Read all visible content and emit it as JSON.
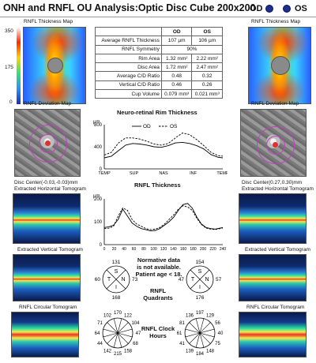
{
  "header": {
    "title": "ONH and RNFL OU Analysis:Optic Disc Cube 200x200",
    "od_label": "OD",
    "os_label": "OS"
  },
  "colors": {
    "eye_marker": "#1d2f8c",
    "od_series": "#000000",
    "os_series": "#000000"
  },
  "thickness_map": {
    "title": "RNFL Thickness Map",
    "scale_ticks": [
      "350",
      "175",
      "0"
    ]
  },
  "deviation_map": {
    "title": "RNFL Deviation Map",
    "od_center": "Disc Center(-0.03,-0.03)mm",
    "os_center": "Disc Center(0.27,0.30)mm"
  },
  "tomograms": {
    "horizontal": "Extracted Horizontal Tomogram",
    "vertical": "Extracted Vertical Tomogram",
    "circular": "RNFL Circular Tomogram"
  },
  "summary_table": {
    "headers": [
      "",
      "OD",
      "OS"
    ],
    "rows": [
      {
        "label": "Average RNFL Thickness",
        "od": "107 µm",
        "os": "106 µm"
      },
      {
        "label": "RNFL Symmetry",
        "both": "90%"
      },
      {
        "label": "Rim Area",
        "od": "1.32 mm²",
        "os": "2.22 mm²"
      },
      {
        "label": "Disc Area",
        "od": "1.72 mm²",
        "os": "2.47 mm²"
      },
      {
        "label": "Average C/D Ratio",
        "od": "0.48",
        "os": "0.32"
      },
      {
        "label": "Vertical C/D Ratio",
        "od": "0.46",
        "os": "0.26"
      },
      {
        "label": "Cup Volume",
        "od": "0.079 mm³",
        "os": "0.021 mm³"
      }
    ]
  },
  "chart_data": [
    {
      "type": "line",
      "title": "Neuro-retinal Rim Thickness",
      "ylabel": "µm",
      "yticks": [
        "800",
        "400",
        "0"
      ],
      "ylim": [
        0,
        800
      ],
      "xlim": [
        0,
        100
      ],
      "xticks": [
        "TEMP",
        "SUP",
        "NAS",
        "INF",
        "TEMP"
      ],
      "legend": [
        "OD",
        "OS"
      ],
      "series": [
        {
          "name": "OD",
          "style": "solid",
          "x": [
            0,
            6,
            12,
            18,
            24,
            30,
            36,
            42,
            48,
            54,
            60,
            66,
            72,
            78,
            84,
            90,
            96,
            100
          ],
          "values": [
            200,
            230,
            330,
            430,
            460,
            450,
            430,
            400,
            390,
            420,
            470,
            480,
            460,
            420,
            360,
            260,
            210,
            200
          ]
        },
        {
          "name": "OS",
          "style": "dashed",
          "x": [
            0,
            6,
            12,
            18,
            24,
            30,
            36,
            42,
            48,
            54,
            60,
            66,
            72,
            78,
            84,
            90,
            96,
            100
          ],
          "values": [
            250,
            300,
            470,
            560,
            560,
            540,
            500,
            450,
            430,
            460,
            560,
            650,
            620,
            530,
            420,
            300,
            240,
            230
          ]
        }
      ]
    },
    {
      "type": "line",
      "title": "RNFL Thickness",
      "ylabel": "µm",
      "yticks": [
        "200",
        "100",
        "0"
      ],
      "ylim": [
        0,
        200
      ],
      "xlim": [
        0,
        256
      ],
      "xticks": [
        "0",
        "20",
        "40",
        "60",
        "80",
        "100",
        "120",
        "140",
        "160",
        "180",
        "200",
        "220",
        "240"
      ],
      "series": [
        {
          "name": "OD",
          "style": "solid",
          "x": [
            0,
            10,
            20,
            30,
            40,
            50,
            60,
            70,
            80,
            90,
            100,
            110,
            120,
            130,
            140,
            150,
            160,
            170,
            180,
            190,
            200,
            210,
            220,
            230,
            240,
            250,
            256
          ],
          "values": [
            75,
            78,
            85,
            110,
            155,
            125,
            95,
            80,
            70,
            65,
            60,
            62,
            70,
            85,
            100,
            120,
            150,
            175,
            180,
            160,
            120,
            90,
            75,
            70,
            68,
            72,
            75
          ]
        },
        {
          "name": "OS",
          "style": "dashed",
          "x": [
            0,
            10,
            20,
            30,
            40,
            50,
            60,
            70,
            80,
            90,
            100,
            110,
            120,
            130,
            140,
            150,
            160,
            170,
            180,
            190,
            200,
            210,
            220,
            230,
            240,
            250,
            256
          ],
          "values": [
            70,
            72,
            80,
            125,
            160,
            150,
            110,
            90,
            80,
            70,
            65,
            68,
            75,
            90,
            110,
            130,
            155,
            170,
            165,
            150,
            115,
            88,
            72,
            68,
            66,
            70,
            72
          ]
        }
      ]
    }
  ],
  "quadrants": {
    "title": "RNFL Quadrants",
    "od": {
      "S": "131",
      "N": "73",
      "I": "168",
      "T": "60"
    },
    "os": {
      "S": "154",
      "N": "57",
      "I": "176",
      "T": "47"
    },
    "letters": [
      "S",
      "N",
      "I",
      "T"
    ]
  },
  "clock_hours": {
    "title": "RNFL Clock Hours",
    "od": [
      "170",
      "122",
      "104",
      "47",
      "68",
      "158",
      "215",
      "142",
      "44",
      "64",
      "71",
      "102"
    ],
    "os": [
      "197",
      "129",
      "56",
      "40",
      "75",
      "148",
      "184",
      "139",
      "41",
      "61",
      "81",
      "136"
    ]
  },
  "normative_note": "Normative data is not available. Patient age < 18."
}
